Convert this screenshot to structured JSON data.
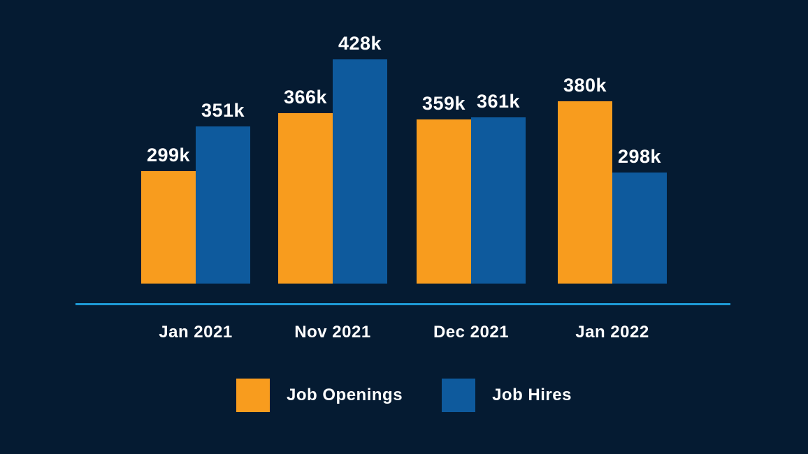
{
  "canvas": {
    "background": "#051B32",
    "text_color": "#FFFFFF"
  },
  "chart_data": {
    "type": "bar",
    "title": "",
    "unit": "k (thousands)",
    "categories": [
      "Jan 2021",
      "Nov 2021",
      "Dec 2021",
      "Jan 2022"
    ],
    "series": [
      {
        "name": "Job Openings",
        "color": "#F89C1E",
        "values": [
          299,
          366,
          359,
          380
        ],
        "labels": [
          "299k",
          "366k",
          "359k",
          "380k"
        ]
      },
      {
        "name": "Job Hires",
        "color": "#0E5A9D",
        "values": [
          351,
          428,
          361,
          298
        ],
        "labels": [
          "351k",
          "428k",
          "361k",
          "298k"
        ]
      }
    ],
    "ylim": [
      170,
      428
    ],
    "grid": false,
    "axis_line_color": "#1E9AD6",
    "legend_position": "bottom"
  }
}
